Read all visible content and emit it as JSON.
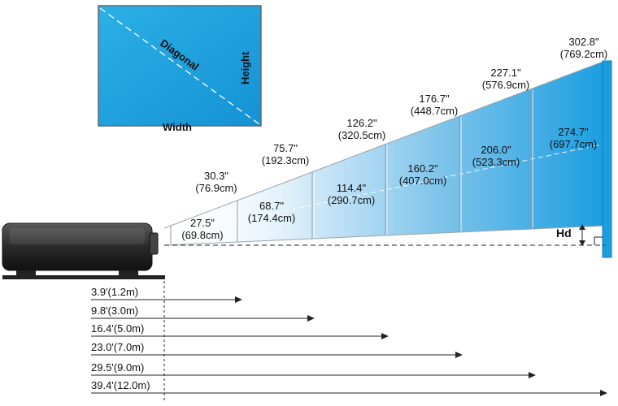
{
  "screen_legend": {
    "diagonal_label": "Diagonal",
    "height_label": "Height",
    "width_label": "Width"
  },
  "hd_label": "Hd",
  "screens": [
    {
      "diagonal": "30.3\"",
      "diagonal_metric": "(76.9cm)",
      "height": "27.5\"",
      "height_metric": "(69.8cm)"
    },
    {
      "diagonal": "75.7\"",
      "diagonal_metric": "(192.3cm)",
      "height": "68.7\"",
      "height_metric": "(174.4cm)"
    },
    {
      "diagonal": "126.2\"",
      "diagonal_metric": "(320.5cm)",
      "height": "114.4\"",
      "height_metric": "(290.7cm)"
    },
    {
      "diagonal": "176.7\"",
      "diagonal_metric": "(448.7cm)",
      "height": "160.2\"",
      "height_metric": "(407.0cm)"
    },
    {
      "diagonal": "227.1\"",
      "diagonal_metric": "(576.9cm)",
      "height": "206.0\"",
      "height_metric": "(523.3cm)"
    },
    {
      "diagonal": "302.8\"",
      "diagonal_metric": "(769.2cm)",
      "height": "274.7\"",
      "height_metric": "(697.7cm)"
    }
  ],
  "distances": [
    "3.9'(1.2m)",
    "9.8'(3.0m)",
    "16.4'(5.0m)",
    "23.0'(7.0m)",
    "29.5'(9.0m)",
    "39.4'(12.0m)"
  ],
  "colors": {
    "screen_fill": "#1aa0de",
    "screen_border": "#5a6a73",
    "projector_body": "#2b2b2b"
  }
}
